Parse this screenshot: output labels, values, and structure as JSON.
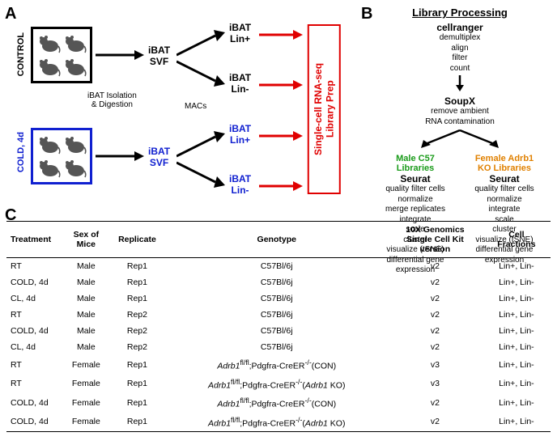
{
  "panelA": {
    "label": "A",
    "control_label": "CONTROL",
    "cold_label": "COLD, 4d",
    "svf_control": "iBAT\nSVF",
    "svf_cold": "iBAT\nSVF",
    "isolation": "iBAT Isolation\n& Digestion",
    "macs": "MACs",
    "linplus_top": "iBAT\nLin+",
    "linminus_top": "iBAT\nLin-",
    "linplus_bot": "iBAT\nLin+",
    "linminus_bot": "iBAT\nLin-",
    "libprep": "Single-cell RNA-seq\nLibrary Prep",
    "colors": {
      "control": "#000000",
      "cold": "#1020d0",
      "red": "#e00000"
    }
  },
  "panelB": {
    "label": "B",
    "title": "Library Processing",
    "step1": "cellranger",
    "step1_sub": "demultiplex\nalign\nfilter\ncount",
    "step2": "SoupX",
    "step2_sub": "remove ambient\nRNA contamination",
    "left_title": "Male C57\nLibraries",
    "right_title": "Female Adrb1\nKO Libraries",
    "left_seurat": "Seurat",
    "right_seurat": "Seurat",
    "left_steps": "quality filter cells\nnormalize\nmerge replicates\nintegrate\nscale\ncluster\nvisualize (tSNE)\ndifferential gene\nexpression",
    "right_steps": "quality filter cells\nnormalize\nintegrate\nscale\ncluster\nvisualize (tSNE)\ndifferential gene\nexpression",
    "colors": {
      "male": "#1a9b1a",
      "female": "#e08000"
    }
  },
  "panelC": {
    "label": "C",
    "headers": {
      "treatment": "Treatment",
      "sex": "Sex of\nMice",
      "rep": "Replicate",
      "geno": "Genotype",
      "kit": "10X Genomics\nSingle Cell Kit\nversion",
      "frac": "Cell\nFractions"
    },
    "rows": [
      {
        "t": "RT",
        "s": "Male",
        "r": "Rep1",
        "g": "C57Bl/6j",
        "k": "v2",
        "f": "Lin+, Lin-"
      },
      {
        "t": "COLD, 4d",
        "s": "Male",
        "r": "Rep1",
        "g": "C57Bl/6j",
        "k": "v2",
        "f": "Lin+, Lin-"
      },
      {
        "t": "CL, 4d",
        "s": "Male",
        "r": "Rep1",
        "g": "C57Bl/6j",
        "k": "v2",
        "f": "Lin+, Lin-"
      },
      {
        "t": "RT",
        "s": "Male",
        "r": "Rep2",
        "g": "C57Bl/6j",
        "k": "v2",
        "f": "Lin+, Lin-"
      },
      {
        "t": "COLD, 4d",
        "s": "Male",
        "r": "Rep2",
        "g": "C57Bl/6j",
        "k": "v2",
        "f": "Lin+, Lin-"
      },
      {
        "t": "CL, 4d",
        "s": "Male",
        "r": "Rep2",
        "g": "C57Bl/6j",
        "k": "v2",
        "f": "Lin+, Lin-"
      },
      {
        "t": "RT",
        "s": "Female",
        "r": "Rep1",
        "g": "Adrb1fl/fl;Pdgfra-CreER-/-(CON)",
        "k": "v3",
        "f": "Lin+, Lin-"
      },
      {
        "t": "RT",
        "s": "Female",
        "r": "Rep1",
        "g": "Adrb1fl/fl;Pdgfra-CreER-/-(Adrb1 KO)",
        "k": "v3",
        "f": "Lin+, Lin-"
      },
      {
        "t": "COLD, 4d",
        "s": "Female",
        "r": "Rep1",
        "g": "Adrb1fl/fl;Pdgfra-CreER-/-(CON)",
        "k": "v2",
        "f": "Lin+, Lin-"
      },
      {
        "t": "COLD, 4d",
        "s": "Female",
        "r": "Rep1",
        "g": "Adrb1fl/fl;Pdgfra-CreER-/-(Adrb1 KO)",
        "k": "v2",
        "f": "Lin+, Lin-"
      }
    ]
  }
}
